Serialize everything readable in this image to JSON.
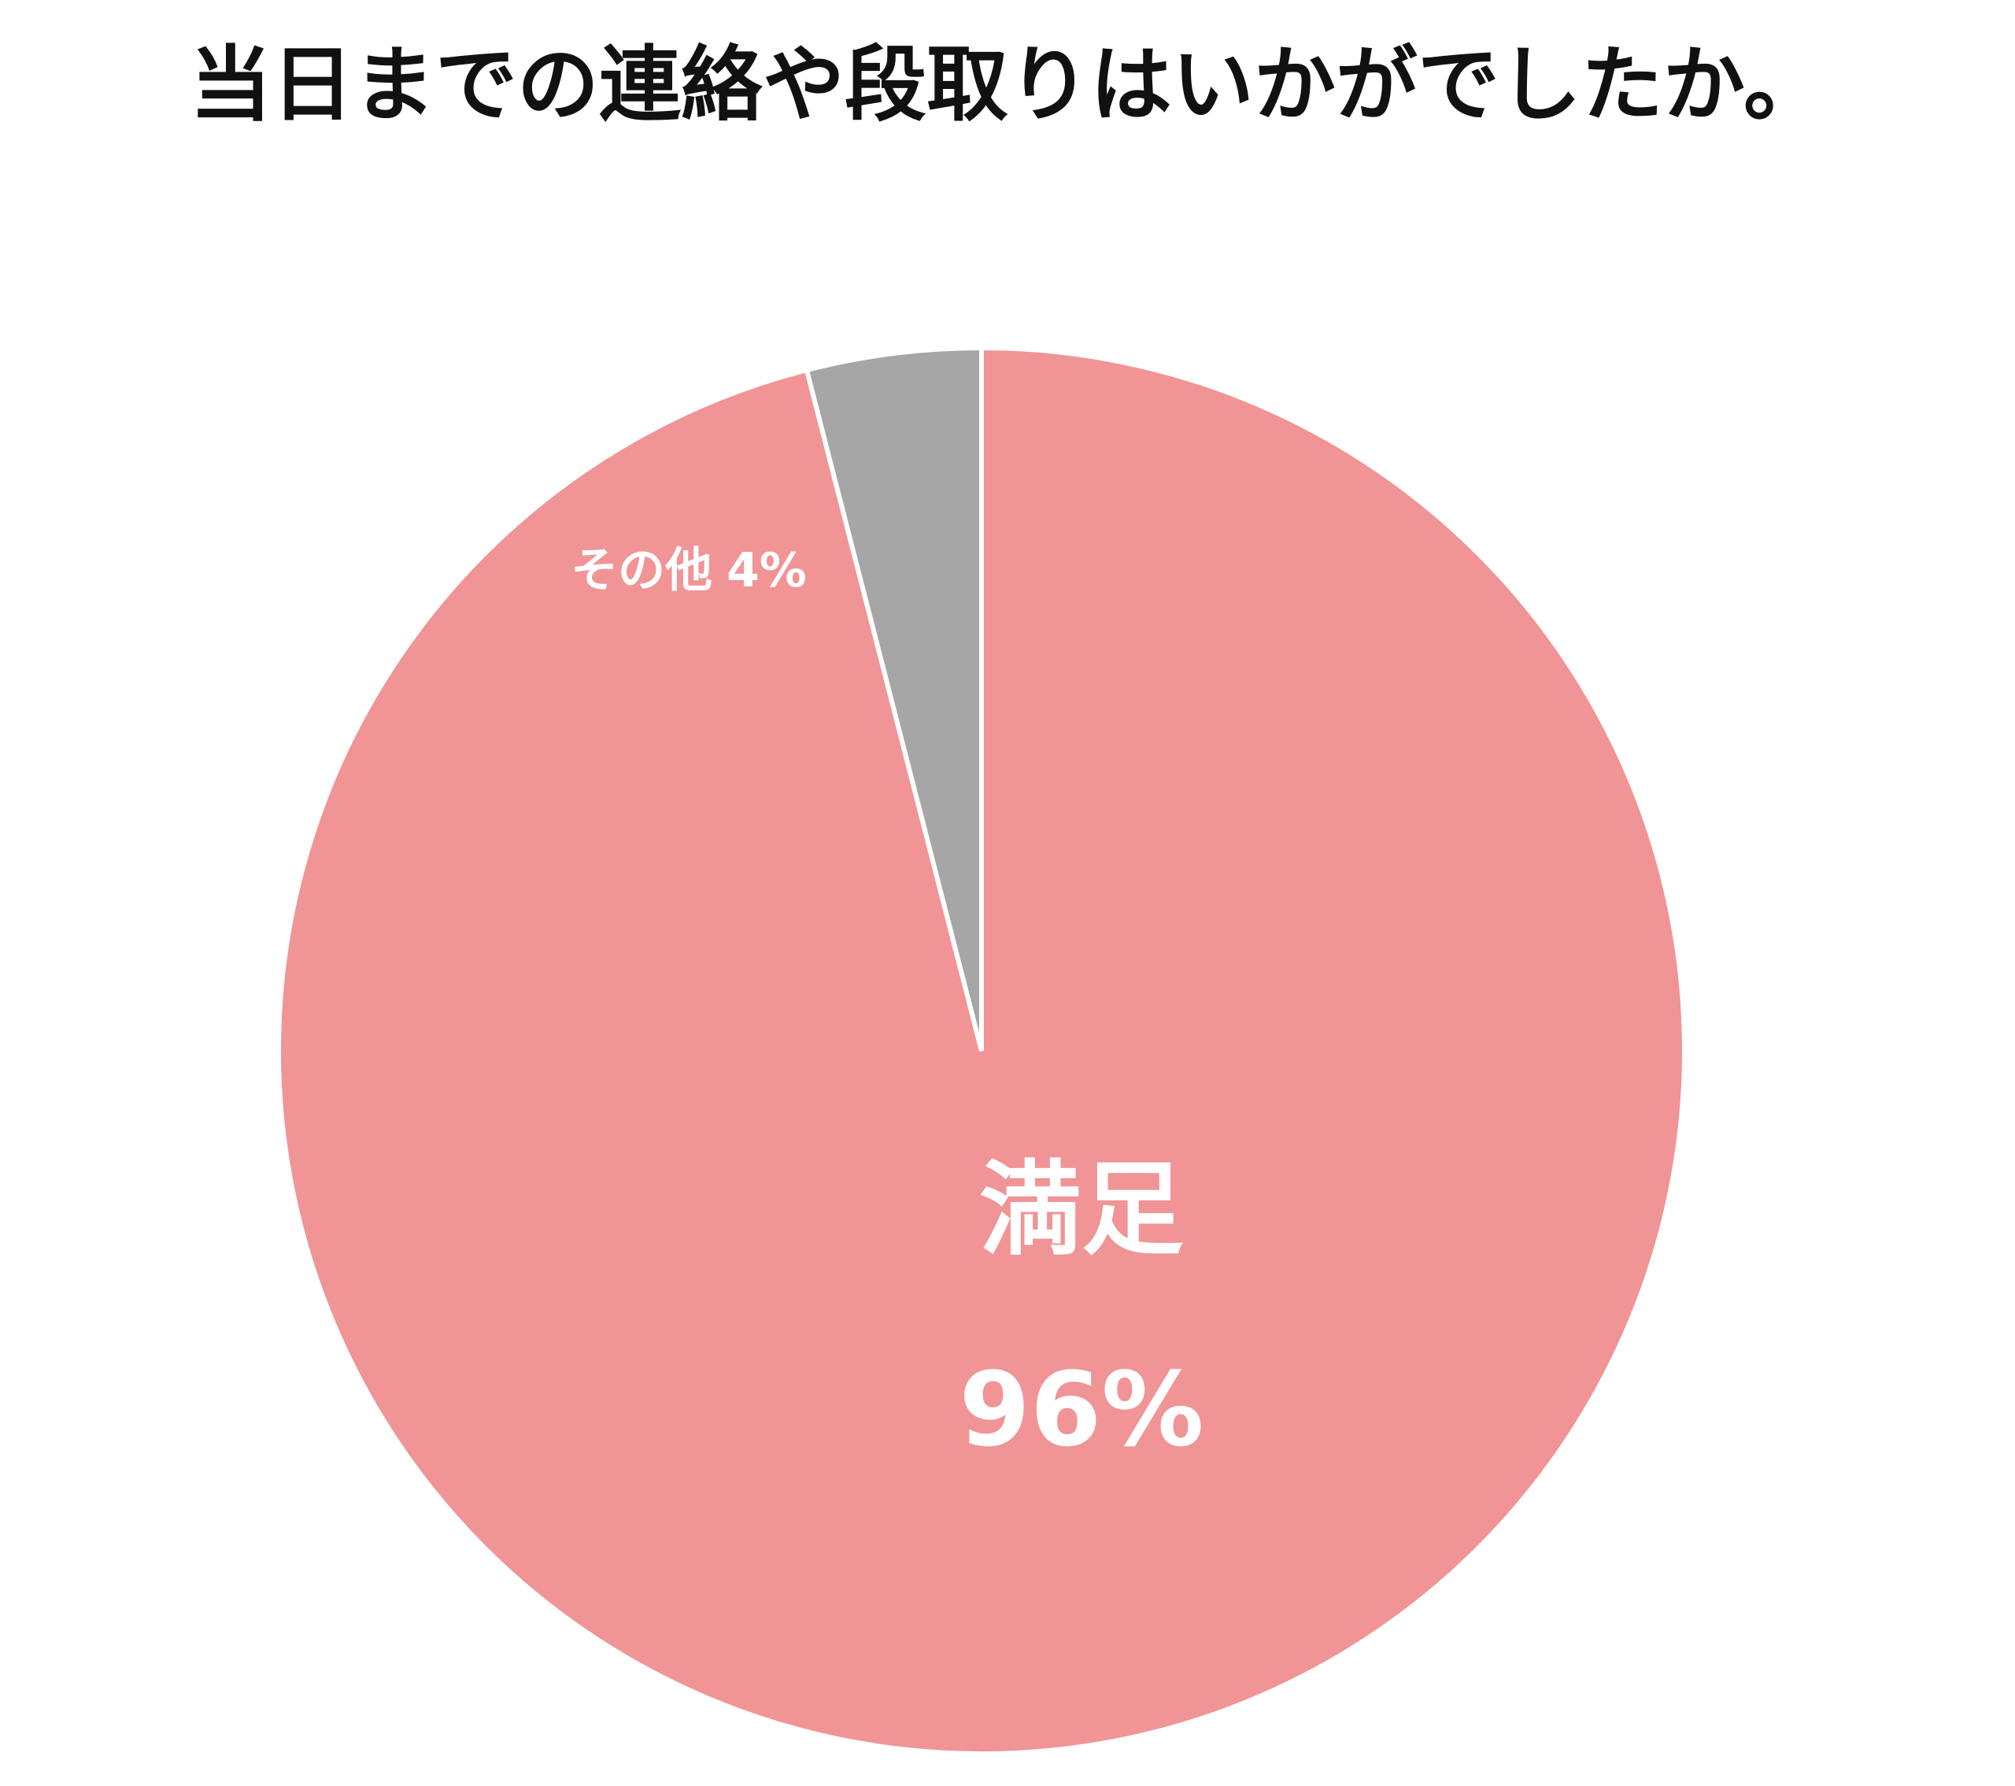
{
  "chart_data": {
    "type": "pie",
    "title": "当日までの連絡や段取りはいかがでしたか。",
    "categories": [
      "満足",
      "その他"
    ],
    "values": [
      96,
      4
    ],
    "value_labels": [
      "96%",
      "4%"
    ],
    "colors": [
      "#f09496",
      "#a6a6a6"
    ]
  }
}
